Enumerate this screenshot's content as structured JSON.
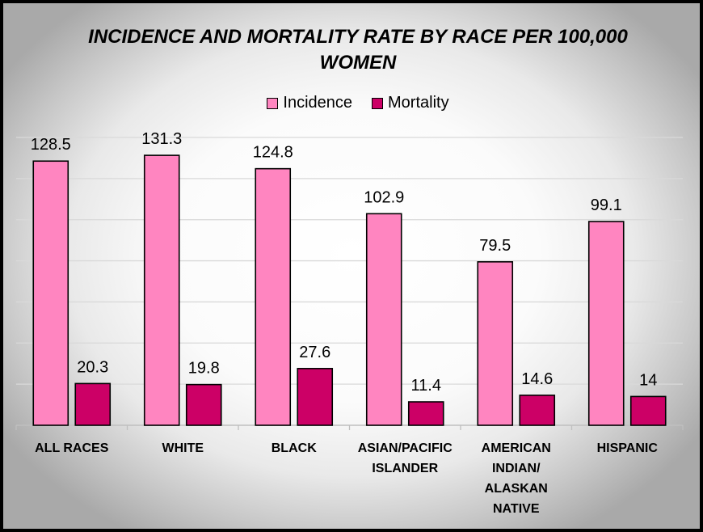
{
  "chart_data": {
    "type": "bar",
    "title_lines": [
      "INCIDENCE AND MORTALITY RATE BY RACE PER 100,000",
      "WOMEN"
    ],
    "categories": [
      [
        "ALL RACES"
      ],
      [
        "WHITE"
      ],
      [
        "BLACK"
      ],
      [
        "ASIAN/PACIFIC",
        "ISLANDER"
      ],
      [
        "AMERICAN",
        "INDIAN/",
        "ALASKAN",
        "NATIVE"
      ],
      [
        "HISPANIC"
      ]
    ],
    "series": [
      {
        "name": "Incidence",
        "color": "#FF85C0",
        "values": [
          128.5,
          131.3,
          124.8,
          102.9,
          79.5,
          99.1
        ],
        "labels": [
          "128.5",
          "131.3",
          "124.8",
          "102.9",
          "79.5",
          "99.1"
        ]
      },
      {
        "name": "Mortality",
        "color": "#CC0066",
        "values": [
          20.3,
          19.8,
          27.6,
          11.4,
          14.6,
          14
        ],
        "labels": [
          "20.3",
          "19.8",
          "27.6",
          "11.4",
          "14.6",
          "14"
        ]
      }
    ],
    "ylim": [
      0,
      140
    ],
    "grid": true,
    "legend_position": "top"
  }
}
